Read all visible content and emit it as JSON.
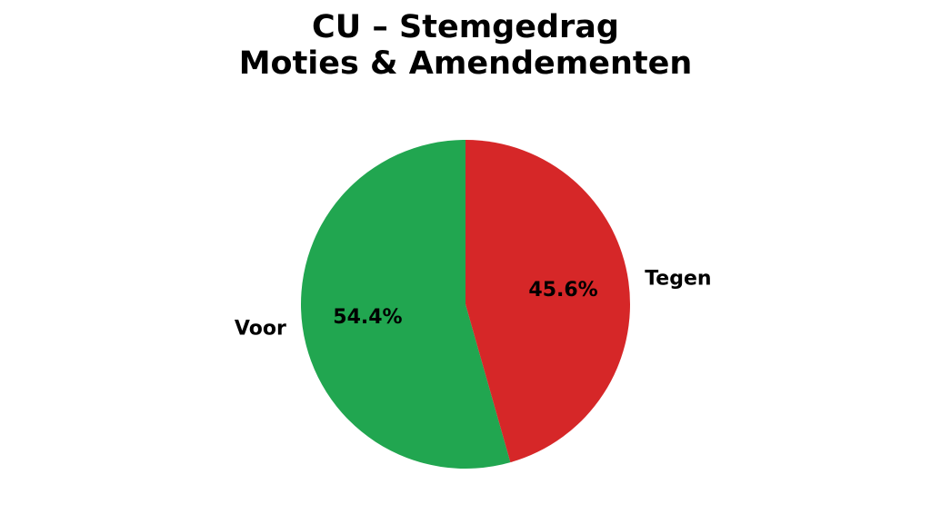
{
  "chart_data": {
    "type": "pie",
    "title": [
      "CU – Stemgedrag",
      "Moties & Amendementen"
    ],
    "categories": [
      "Voor",
      "Tegen"
    ],
    "values": [
      54.4,
      45.6
    ],
    "value_labels": [
      "54.4%",
      "45.6%"
    ],
    "colors": [
      "#21a650",
      "#d62728"
    ]
  }
}
